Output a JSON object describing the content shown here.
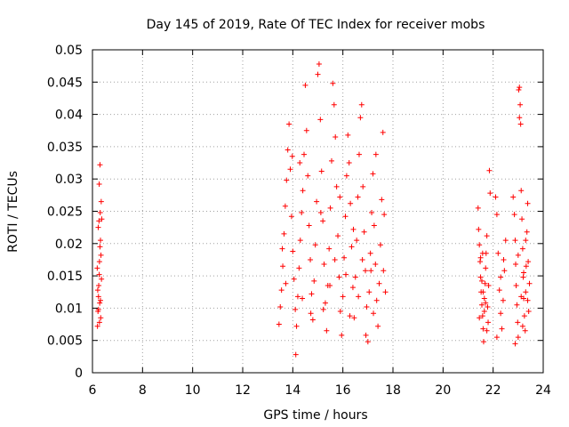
{
  "chart_data": {
    "type": "scatter",
    "title": "Day 145 of 2019, Rate Of TEC Index for receiver mobs",
    "xlabel": "GPS time / hours",
    "ylabel": "ROTI / TECUs",
    "xlim": [
      6,
      24
    ],
    "ylim": [
      0,
      0.05
    ],
    "x_ticks": [
      6,
      8,
      10,
      12,
      14,
      16,
      18,
      20,
      22,
      24
    ],
    "y_ticks": [
      0,
      0.005,
      0.01,
      0.015,
      0.02,
      0.025,
      0.03,
      0.035,
      0.04,
      0.045,
      0.05
    ],
    "x_tick_labels": [
      "6",
      "8",
      "10",
      "12",
      "14",
      "16",
      "18",
      "20",
      "22",
      "24"
    ],
    "y_tick_labels": [
      "0",
      "0.005",
      "0.01",
      "0.015",
      "0.02",
      "0.025",
      "0.03",
      "0.035",
      "0.04",
      "0.045",
      "0.05"
    ],
    "grid": true,
    "marker": "+",
    "color": "#ff0000",
    "series": [
      {
        "name": "ROTI",
        "points": [
          [
            6.2,
            0.0072
          ],
          [
            6.22,
            0.0095
          ],
          [
            6.24,
            0.0118
          ],
          [
            6.25,
            0.0135
          ],
          [
            6.27,
            0.0152
          ],
          [
            6.28,
            0.0172
          ],
          [
            6.3,
            0.0195
          ],
          [
            6.32,
            0.0205
          ],
          [
            6.23,
            0.0225
          ],
          [
            6.26,
            0.0235
          ],
          [
            6.31,
            0.0248
          ],
          [
            6.35,
            0.0265
          ],
          [
            6.33,
            0.0085
          ],
          [
            6.29,
            0.0108
          ],
          [
            6.21,
            0.0128
          ],
          [
            6.36,
            0.0145
          ],
          [
            6.19,
            0.0162
          ],
          [
            6.34,
            0.0182
          ],
          [
            6.28,
            0.0078
          ],
          [
            6.3,
            0.0322
          ],
          [
            6.27,
            0.0292
          ],
          [
            6.37,
            0.0238
          ],
          [
            6.24,
            0.0098
          ],
          [
            6.32,
            0.0112
          ],
          [
            13.45,
            0.0075
          ],
          [
            13.5,
            0.0102
          ],
          [
            13.55,
            0.0128
          ],
          [
            13.6,
            0.0165
          ],
          [
            13.65,
            0.0215
          ],
          [
            13.7,
            0.0258
          ],
          [
            13.75,
            0.0298
          ],
          [
            13.8,
            0.0345
          ],
          [
            13.85,
            0.0385
          ],
          [
            13.9,
            0.0315
          ],
          [
            13.95,
            0.0242
          ],
          [
            14.0,
            0.0188
          ],
          [
            14.05,
            0.0145
          ],
          [
            14.1,
            0.0098
          ],
          [
            14.15,
            0.0072
          ],
          [
            14.2,
            0.0118
          ],
          [
            14.25,
            0.0162
          ],
          [
            14.3,
            0.0205
          ],
          [
            14.35,
            0.0248
          ],
          [
            14.4,
            0.0282
          ],
          [
            14.45,
            0.0338
          ],
          [
            14.5,
            0.0445
          ],
          [
            14.55,
            0.0375
          ],
          [
            14.6,
            0.0305
          ],
          [
            14.65,
            0.0228
          ],
          [
            14.7,
            0.0175
          ],
          [
            14.75,
            0.0122
          ],
          [
            14.8,
            0.0082
          ],
          [
            14.85,
            0.0142
          ],
          [
            14.9,
            0.0198
          ],
          [
            14.95,
            0.0265
          ],
          [
            15.0,
            0.0462
          ],
          [
            15.05,
            0.0478
          ],
          [
            15.1,
            0.0392
          ],
          [
            15.15,
            0.0312
          ],
          [
            15.2,
            0.0235
          ],
          [
            15.25,
            0.0168
          ],
          [
            15.3,
            0.0108
          ],
          [
            15.35,
            0.0065
          ],
          [
            15.4,
            0.0135
          ],
          [
            15.45,
            0.0192
          ],
          [
            15.5,
            0.0255
          ],
          [
            15.55,
            0.0328
          ],
          [
            15.6,
            0.0448
          ],
          [
            15.65,
            0.0415
          ],
          [
            15.7,
            0.0365
          ],
          [
            15.75,
            0.0288
          ],
          [
            15.8,
            0.0212
          ],
          [
            15.85,
            0.0148
          ],
          [
            15.9,
            0.0095
          ],
          [
            15.95,
            0.0058
          ],
          [
            16.0,
            0.0118
          ],
          [
            16.05,
            0.0178
          ],
          [
            16.1,
            0.0242
          ],
          [
            16.15,
            0.0305
          ],
          [
            16.2,
            0.0368
          ],
          [
            16.25,
            0.0325
          ],
          [
            16.3,
            0.0262
          ],
          [
            16.35,
            0.0195
          ],
          [
            16.4,
            0.0132
          ],
          [
            16.45,
            0.0085
          ],
          [
            16.5,
            0.0148
          ],
          [
            16.55,
            0.0205
          ],
          [
            16.6,
            0.0272
          ],
          [
            16.65,
            0.0338
          ],
          [
            16.7,
            0.0395
          ],
          [
            16.75,
            0.0415
          ],
          [
            16.8,
            0.0288
          ],
          [
            16.85,
            0.0218
          ],
          [
            16.9,
            0.0158
          ],
          [
            16.95,
            0.0102
          ],
          [
            17.0,
            0.0048
          ],
          [
            17.05,
            0.0125
          ],
          [
            17.1,
            0.0185
          ],
          [
            17.15,
            0.0248
          ],
          [
            17.2,
            0.0308
          ],
          [
            17.25,
            0.0228
          ],
          [
            17.3,
            0.0168
          ],
          [
            17.35,
            0.0112
          ],
          [
            17.4,
            0.0072
          ],
          [
            17.45,
            0.0138
          ],
          [
            17.5,
            0.0198
          ],
          [
            17.55,
            0.0268
          ],
          [
            17.6,
            0.0372
          ],
          [
            17.65,
            0.0245
          ],
          [
            17.7,
            0.0125
          ],
          [
            14.12,
            0.0028
          ],
          [
            13.58,
            0.0192
          ],
          [
            14.38,
            0.0115
          ],
          [
            15.22,
            0.0098
          ],
          [
            15.88,
            0.0272
          ],
          [
            16.42,
            0.0222
          ],
          [
            16.92,
            0.0058
          ],
          [
            17.32,
            0.0338
          ],
          [
            13.98,
            0.0335
          ],
          [
            14.72,
            0.0092
          ],
          [
            15.48,
            0.0135
          ],
          [
            16.12,
            0.0152
          ],
          [
            16.62,
            0.0118
          ],
          [
            17.12,
            0.0158
          ],
          [
            13.72,
            0.0138
          ],
          [
            14.28,
            0.0325
          ],
          [
            15.12,
            0.0248
          ],
          [
            15.68,
            0.0175
          ],
          [
            16.28,
            0.0088
          ],
          [
            16.78,
            0.0175
          ],
          [
            17.22,
            0.0092
          ],
          [
            17.62,
            0.0158
          ],
          [
            21.4,
            0.0255
          ],
          [
            21.42,
            0.0222
          ],
          [
            21.45,
            0.0198
          ],
          [
            21.48,
            0.0172
          ],
          [
            21.5,
            0.0148
          ],
          [
            21.52,
            0.0125
          ],
          [
            21.55,
            0.0105
          ],
          [
            21.58,
            0.0088
          ],
          [
            21.6,
            0.0068
          ],
          [
            21.62,
            0.0048
          ],
          [
            21.65,
            0.0115
          ],
          [
            21.68,
            0.0138
          ],
          [
            21.7,
            0.0162
          ],
          [
            21.72,
            0.0185
          ],
          [
            21.75,
            0.0212
          ],
          [
            21.78,
            0.0102
          ],
          [
            21.8,
            0.0078
          ],
          [
            21.82,
            0.0135
          ],
          [
            21.85,
            0.0313
          ],
          [
            21.88,
            0.0278
          ],
          [
            21.45,
            0.0085
          ],
          [
            21.55,
            0.0142
          ],
          [
            21.65,
            0.0095
          ],
          [
            21.75,
            0.0065
          ],
          [
            21.5,
            0.0178
          ],
          [
            21.6,
            0.0125
          ],
          [
            21.7,
            0.0108
          ],
          [
            21.58,
            0.0185
          ],
          [
            22.1,
            0.0272
          ],
          [
            22.15,
            0.0245
          ],
          [
            22.2,
            0.0185
          ],
          [
            22.25,
            0.0128
          ],
          [
            22.3,
            0.0092
          ],
          [
            22.35,
            0.0068
          ],
          [
            22.4,
            0.0112
          ],
          [
            22.45,
            0.0158
          ],
          [
            22.5,
            0.0205
          ],
          [
            22.15,
            0.0055
          ],
          [
            22.3,
            0.0148
          ],
          [
            22.42,
            0.0175
          ],
          [
            22.8,
            0.0272
          ],
          [
            22.85,
            0.0245
          ],
          [
            22.88,
            0.0205
          ],
          [
            22.9,
            0.0168
          ],
          [
            22.92,
            0.0135
          ],
          [
            22.95,
            0.0105
          ],
          [
            22.98,
            0.0078
          ],
          [
            23.0,
            0.0055
          ],
          [
            23.02,
            0.0438
          ],
          [
            23.05,
            0.0442
          ],
          [
            23.08,
            0.0415
          ],
          [
            23.1,
            0.0385
          ],
          [
            23.12,
            0.0282
          ],
          [
            23.15,
            0.0238
          ],
          [
            23.18,
            0.0192
          ],
          [
            23.2,
            0.0148
          ],
          [
            23.22,
            0.0115
          ],
          [
            23.25,
            0.0088
          ],
          [
            23.28,
            0.0065
          ],
          [
            23.3,
            0.0125
          ],
          [
            23.32,
            0.0165
          ],
          [
            23.35,
            0.0218
          ],
          [
            23.38,
            0.0262
          ],
          [
            23.4,
            0.0172
          ],
          [
            23.42,
            0.0095
          ],
          [
            23.45,
            0.0138
          ],
          [
            22.88,
            0.0045
          ],
          [
            23.0,
            0.0182
          ],
          [
            23.18,
            0.0072
          ],
          [
            23.3,
            0.0205
          ],
          [
            23.05,
            0.0395
          ],
          [
            23.12,
            0.0118
          ],
          [
            23.22,
            0.0155
          ],
          [
            23.38,
            0.0112
          ]
        ]
      }
    ]
  }
}
